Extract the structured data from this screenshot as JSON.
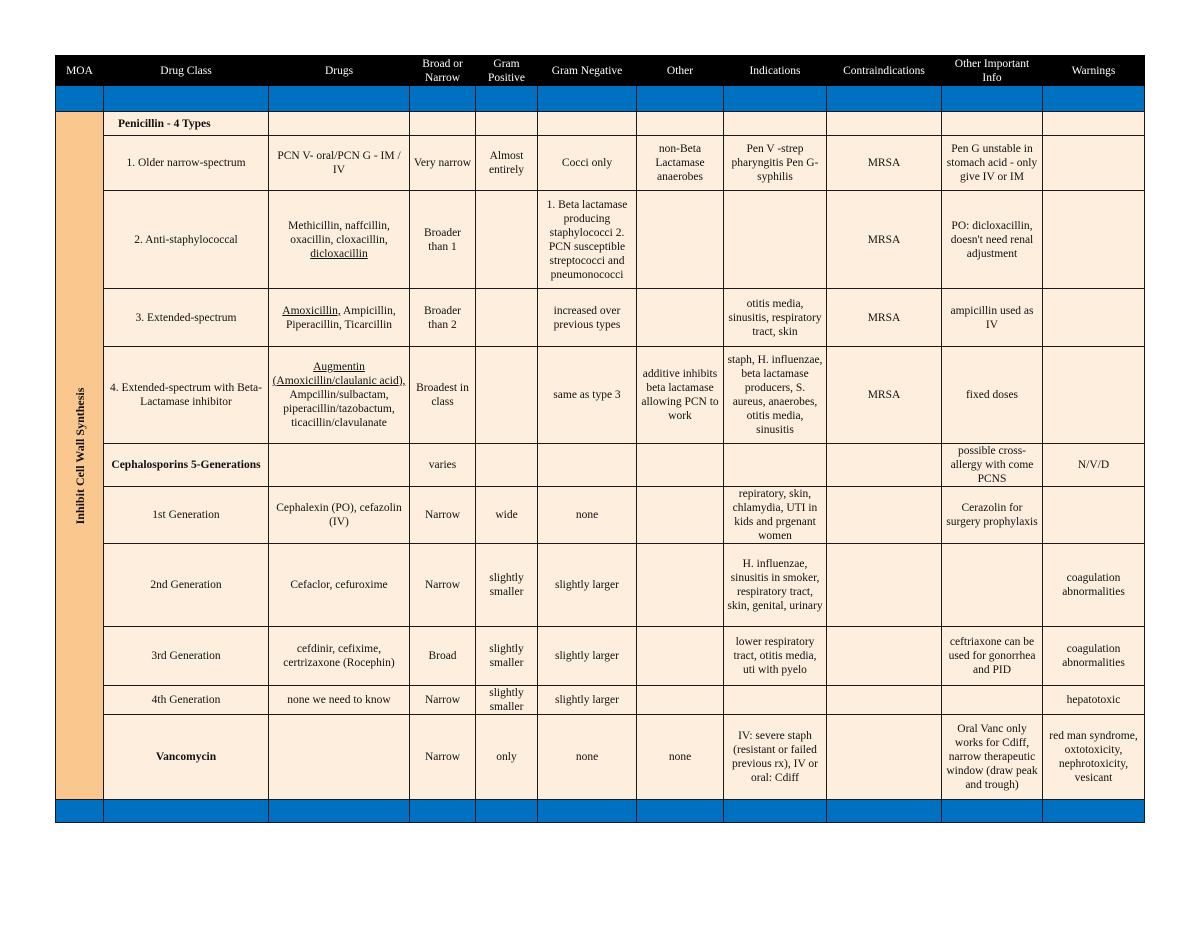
{
  "colors": {
    "header_bg": "#000000",
    "band_blue": "#0070c0",
    "row_bg": "#fdeedd",
    "moa_bg": "#fac88e"
  },
  "headers": [
    "MOA",
    "Drug Class",
    "Drugs",
    "Broad or Narrow",
    "Gram Positive",
    "Gram Negative",
    "Other",
    "Indications",
    "Contraindications",
    "Other Important Info",
    "Warnings"
  ],
  "moa_label": "Inhibit Cell Wall Synthesis",
  "rows": [
    {
      "bold": true,
      "left": true,
      "cells": [
        "Penicillin - 4 Types",
        "",
        "",
        "",
        "",
        "",
        "",
        "",
        "",
        ""
      ]
    },
    {
      "cells": [
        "1. Older narrow-spectrum",
        "PCN V- oral/PCN G - IM / IV",
        "Very narrow",
        "Almost entirely",
        "Cocci only",
        "non-Beta Lactamase anaerobes",
        "Pen V -strep pharyngitis Pen G- syphilis",
        "MRSA",
        "Pen G unstable in stomach acid - only give IV or IM",
        ""
      ]
    },
    {
      "cells": [
        "2. Anti-staphylococcal",
        [
          {
            "t": "Methicillin, naffcillin, oxacillin, cloxacillin, "
          },
          {
            "t": "dicloxacillin",
            "u": true
          }
        ],
        "Broader than 1",
        "",
        "1. Beta lactamase producing staphylococci 2. PCN susceptible streptococci and pneumonococci",
        "",
        "",
        "MRSA",
        "PO: dicloxacillin, doesn't need renal adjustment",
        ""
      ]
    },
    {
      "cells": [
        "3. Extended-spectrum",
        [
          {
            "t": "Amoxicillin,",
            "u": true
          },
          {
            "t": " Ampicillin, Piperacillin, Ticarcillin"
          }
        ],
        "Broader than 2",
        "",
        "increased over previous types",
        "",
        "otitis media, sinusitis, respiratory tract, skin",
        "MRSA",
        "ampicillin used as IV",
        ""
      ]
    },
    {
      "cells": [
        "4. Extended-spectrum with Beta-Lactamase inhibitor",
        [
          {
            "t": "Augmentin (Amoxicillin/claulanic acid),",
            "u": true
          },
          {
            "t": " Ampcillin/sulbactam, piperacillin/tazobactum, ticacillin/clavulanate"
          }
        ],
        "Broadest in class",
        "",
        "same as type 3",
        "additive inhibits beta lactamase allowing PCN to work",
        "staph, H. influenzae, beta lactamase producers, S. aureus, anaerobes, otitis media, sinusitis",
        "MRSA",
        "fixed doses",
        ""
      ]
    },
    {
      "boldFirst": true,
      "cells": [
        "Cephalosporins 5-Generations",
        "",
        "varies",
        "",
        "",
        "",
        "",
        "",
        "possible cross-allergy with come PCNS",
        "N/V/D"
      ]
    },
    {
      "cells": [
        "1st Generation",
        "Cephalexin (PO), cefazolin (IV)",
        "Narrow",
        "wide",
        "none",
        "",
        "repiratory, skin, chlamydia, UTI in kids and prgenant women",
        "",
        "Cerazolin for surgery prophylaxis",
        ""
      ]
    },
    {
      "cells": [
        "2nd Generation",
        "Cefaclor, cefuroxime",
        "Narrow",
        "slightly smaller",
        "slightly larger",
        "",
        "H. influenzae, sinusitis in smoker, respiratory tract, skin, genital, urinary",
        "",
        "",
        "coagulation abnormalities"
      ]
    },
    {
      "cells": [
        "3rd Generation",
        "cefdinir, cefixime, certrizaxone (Rocephin)",
        "Broad",
        "slightly smaller",
        "slightly larger",
        "",
        "lower respiratory tract, otitis media, uti with pyelo",
        "",
        "ceftriaxone can be used for gonorrhea and PID",
        "coagulation abnormalities"
      ]
    },
    {
      "cells": [
        "4th Generation",
        "none we need to know",
        "Narrow",
        "slightly smaller",
        "slightly larger",
        "",
        "",
        "",
        "",
        "hepatotoxic"
      ]
    },
    {
      "boldFirst": true,
      "cells": [
        "Vancomycin",
        "",
        "Narrow",
        "only",
        "none",
        "none",
        "IV: severe staph (resistant or failed previous rx), IV or oral: Cdiff",
        "",
        "Oral Vanc only works for Cdiff, narrow therapeutic window (draw peak and trough)",
        "red man syndrome, oxtotoxicity, nephrotoxicity, vesicant"
      ]
    }
  ]
}
